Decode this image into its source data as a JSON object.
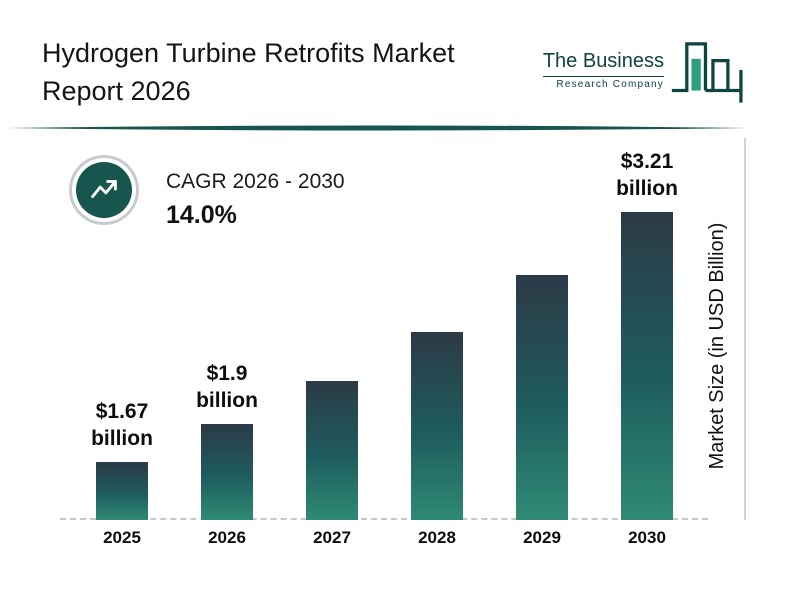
{
  "header": {
    "title_line1": "Hydrogen Turbine Retrofits Market",
    "title_line2": "Report 2026",
    "logo": {
      "line1": "The Business",
      "line2": "Research Company"
    }
  },
  "cagr": {
    "label": "CAGR 2026 - 2030",
    "value": "14.0%"
  },
  "chart_data": {
    "type": "bar",
    "title": "Hydrogen Turbine Retrofits Market Report 2026",
    "categories": [
      "2025",
      "2026",
      "2027",
      "2028",
      "2029",
      "2030"
    ],
    "values": [
      1.67,
      1.9,
      2.17,
      2.47,
      2.82,
      3.21
    ],
    "value_unit": "USD billion",
    "bar_labels": [
      {
        "value": "$1.67",
        "unit": "billion"
      },
      {
        "value": "$1.9",
        "unit": "billion"
      },
      null,
      null,
      null,
      {
        "value": "$3.21",
        "unit": "billion"
      }
    ],
    "xlabel": "",
    "ylabel": "Market Size (in USD Billion)",
    "ylim": [
      0,
      3.5
    ],
    "legend": "none",
    "grid": "none",
    "annotations": [
      "CAGR 2026 - 2030: 14.0%"
    ]
  },
  "colors": {
    "accent_teal": "#17564e",
    "bar_top": "#2c3a47",
    "bar_bottom": "#2f8a74",
    "logo_green": "#2aa07c",
    "text": "#111111",
    "axis_gray": "#c9c9c9"
  }
}
